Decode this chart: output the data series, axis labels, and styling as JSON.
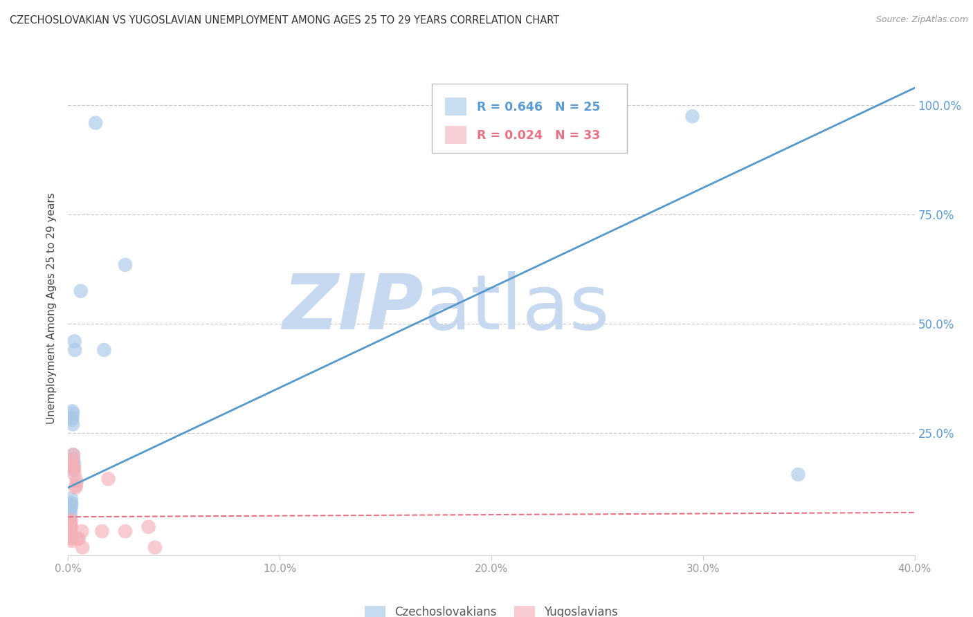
{
  "title": "CZECHOSLOVAKIAN VS YUGOSLAVIAN UNEMPLOYMENT AMONG AGES 25 TO 29 YEARS CORRELATION CHART",
  "source": "Source: ZipAtlas.com",
  "ylabel": "Unemployment Among Ages 25 to 29 years",
  "xlim": [
    0.0,
    0.4
  ],
  "ylim": [
    -0.03,
    1.1
  ],
  "xticks": [
    0.0,
    0.1,
    0.2,
    0.3,
    0.4
  ],
  "xtick_labels": [
    "0.0%",
    "10.0%",
    "20.0%",
    "30.0%",
    "40.0%"
  ],
  "ytick_labels_right": [
    "100.0%",
    "75.0%",
    "50.0%",
    "25.0%"
  ],
  "ytick_vals_right": [
    1.0,
    0.75,
    0.5,
    0.25
  ],
  "legend_label1": "R = 0.646   N = 25",
  "legend_label2": "R = 0.024   N = 33",
  "legend_x_labels": [
    "Czechoslovakians",
    "Yugoslavians"
  ],
  "watermark_zip": "ZIP",
  "watermark_atlas": "atlas",
  "watermark_color": "#c6d9f0",
  "background_color": "#ffffff",
  "grid_color": "#cccccc",
  "blue_color": "#a8c8e8",
  "pink_color": "#f4b0b8",
  "blue_line_color": "#5599cc",
  "pink_line_color": "#e87080",
  "czech_points": [
    [
      0.0008,
      0.055
    ],
    [
      0.0008,
      0.045
    ],
    [
      0.001,
      0.06
    ],
    [
      0.0012,
      0.07
    ],
    [
      0.0014,
      0.08
    ],
    [
      0.0014,
      0.1
    ],
    [
      0.0015,
      0.085
    ],
    [
      0.0016,
      0.09
    ],
    [
      0.0018,
      0.28
    ],
    [
      0.002,
      0.3
    ],
    [
      0.002,
      0.285
    ],
    [
      0.0022,
      0.295
    ],
    [
      0.0022,
      0.27
    ],
    [
      0.0025,
      0.19
    ],
    [
      0.0025,
      0.2
    ],
    [
      0.0026,
      0.165
    ],
    [
      0.0028,
      0.18
    ],
    [
      0.003,
      0.46
    ],
    [
      0.0032,
      0.44
    ],
    [
      0.006,
      0.575
    ],
    [
      0.013,
      0.96
    ],
    [
      0.017,
      0.44
    ],
    [
      0.027,
      0.635
    ],
    [
      0.295,
      0.975
    ],
    [
      0.345,
      0.155
    ]
  ],
  "yugoslav_points": [
    [
      0.0005,
      0.025
    ],
    [
      0.0006,
      0.015
    ],
    [
      0.0007,
      0.035
    ],
    [
      0.0008,
      0.02
    ],
    [
      0.0009,
      0.045
    ],
    [
      0.0009,
      0.03
    ],
    [
      0.001,
      0.01
    ],
    [
      0.001,
      0.015
    ],
    [
      0.0012,
      0.025
    ],
    [
      0.0013,
      0.04
    ],
    [
      0.0014,
      0.05
    ],
    [
      0.0015,
      0.035
    ],
    [
      0.0015,
      0.015
    ],
    [
      0.0016,
      0.008
    ],
    [
      0.0018,
      0.003
    ],
    [
      0.002,
      0.18
    ],
    [
      0.0022,
      0.19
    ],
    [
      0.0023,
      0.2
    ],
    [
      0.0025,
      0.17
    ],
    [
      0.0028,
      0.17
    ],
    [
      0.003,
      0.155
    ],
    [
      0.0035,
      0.125
    ],
    [
      0.0038,
      0.13
    ],
    [
      0.004,
      0.14
    ],
    [
      0.0045,
      0.008
    ],
    [
      0.005,
      0.008
    ],
    [
      0.0065,
      0.025
    ],
    [
      0.0068,
      -0.012
    ],
    [
      0.016,
      0.025
    ],
    [
      0.019,
      0.145
    ],
    [
      0.027,
      0.025
    ],
    [
      0.038,
      0.035
    ],
    [
      0.041,
      -0.012
    ]
  ],
  "czech_line_x": [
    0.0,
    0.4
  ],
  "czech_line_y": [
    0.125,
    1.04
  ],
  "yugoslav_line_x": [
    0.0,
    0.4
  ],
  "yugoslav_line_y": [
    0.058,
    0.068
  ]
}
